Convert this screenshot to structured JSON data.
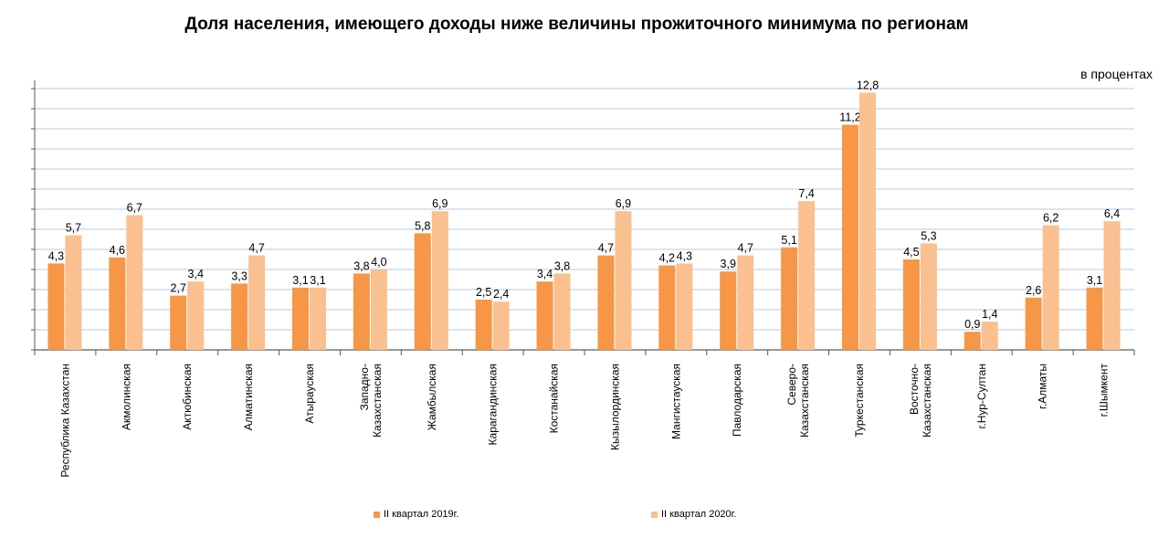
{
  "title": "Доля населения, имеющего доходы ниже величины прожиточного минимума по регионам",
  "unit": "в процентах",
  "colors": {
    "series1": "#F79646",
    "series2": "#FAC090",
    "grid": "#C6D4EB",
    "axis": "#595959"
  },
  "chart_data": {
    "type": "bar",
    "ylim": [
      0,
      13
    ],
    "grid": true,
    "legend_position": "bottom",
    "categories": [
      "Республика Казахстан",
      "Акмолинская",
      "Актюбинская",
      "Алматинская",
      "Атырауская",
      "Западно-\nКазахстанская",
      "Жамбылская",
      "Карагандинская",
      "Костанайская",
      "Кызылординская",
      "Мангистауская",
      "Павлодарская",
      "Северо-\nКазахстанская",
      "Туркестанская",
      "Восточно-\nКазахстанская",
      "г.Нур-Султан",
      "г.Алматы",
      "г.Шымкент"
    ],
    "series": [
      {
        "name": "II квартал 2019г.",
        "values": [
          4.3,
          4.6,
          2.7,
          3.3,
          3.1,
          3.8,
          5.8,
          2.5,
          3.4,
          4.7,
          4.2,
          3.9,
          5.1,
          11.2,
          4.5,
          0.9,
          2.6,
          3.1
        ],
        "labels": [
          "4,3",
          "4,6",
          "2,7",
          "3,3",
          "3,1",
          "3,8",
          "5,8",
          "2,5",
          "3,4",
          "4,7",
          "4,2",
          "3,9",
          "5,1",
          "11,2",
          "4,5",
          "0,9",
          "2,6",
          "3,1"
        ]
      },
      {
        "name": "II квартал 2020г.",
        "values": [
          5.7,
          6.7,
          3.4,
          4.7,
          3.1,
          4.0,
          6.9,
          2.4,
          3.8,
          6.9,
          4.3,
          4.7,
          7.4,
          12.8,
          5.3,
          1.4,
          6.2,
          6.4
        ],
        "labels": [
          "5,7",
          "6,7",
          "3,4",
          "4,7",
          "3,1",
          "4,0",
          "6,9",
          "2,4",
          "3,8",
          "6,9",
          "4,3",
          "4,7",
          "7,4",
          "12,8",
          "5,3",
          "1,4",
          "6,2",
          "6,4"
        ]
      }
    ]
  }
}
